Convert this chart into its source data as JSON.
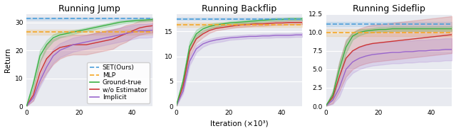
{
  "titles": [
    "Running Jump",
    "Running Backflip",
    "Running Sideflip"
  ],
  "xlabel": "Iteration (×10³)",
  "ylabel": "Return",
  "colors": {
    "SET": "#4C9ED9",
    "MLP": "#F5A623",
    "Ground": "#3BB143",
    "wo_Estimator": "#CC3333",
    "Implicit": "#9966CC"
  },
  "jump": {
    "SET_val": 31.3,
    "MLP_val": 26.5,
    "SET_std": 0.4,
    "MLP_std": 0.8,
    "ground_curve": [
      0.2,
      8,
      18,
      22,
      24.5,
      25.5,
      26,
      26.5,
      27,
      27.5,
      28,
      28.5,
      29,
      29.5,
      30,
      30.3,
      30.5,
      30.7,
      30.8,
      31.0
    ],
    "ground_std": [
      0.1,
      1.5,
      2,
      1.5,
      1.2,
      1.0,
      0.8,
      0.7,
      0.6,
      0.6,
      0.6,
      0.6,
      0.6,
      0.6,
      0.6,
      0.5,
      0.5,
      0.5,
      0.5,
      0.5
    ],
    "wo_est_curve": [
      0.2,
      4,
      12,
      17,
      19.5,
      21,
      21.5,
      22,
      22,
      22,
      22.5,
      23,
      23.5,
      24,
      25,
      26,
      27,
      28,
      28.5,
      28.8
    ],
    "wo_est_std": [
      0.1,
      2,
      4,
      5,
      4.5,
      4,
      3.5,
      3.5,
      3.5,
      3.5,
      3.5,
      3.5,
      3.5,
      3.5,
      3,
      3,
      2.5,
      2.5,
      2.5,
      2.5
    ],
    "implicit_curve": [
      0.2,
      3,
      9,
      14,
      18,
      20,
      21,
      22,
      22.5,
      23,
      23.5,
      24,
      24.5,
      25,
      25.5,
      26,
      26.5,
      27,
      27,
      27.2
    ],
    "implicit_std": [
      0.1,
      1,
      2,
      2.5,
      2.5,
      2.5,
      2.5,
      2.5,
      2.5,
      2.5,
      2.5,
      2.5,
      2.5,
      2.5,
      2.5,
      2.5,
      2.5,
      2.5,
      2.5,
      2.5
    ],
    "ylim": [
      0,
      33
    ],
    "yticks": [
      0,
      10,
      20,
      30
    ]
  },
  "backflip": {
    "SET_val": 17.5,
    "MLP_val": 16.3,
    "SET_std": 0.2,
    "MLP_std": 0.4,
    "ground_curve": [
      0.2,
      5,
      12,
      14.5,
      15.5,
      16,
      16.3,
      16.5,
      16.7,
      16.8,
      16.9,
      17.0,
      17.1,
      17.2,
      17.3,
      17.4,
      17.4,
      17.5,
      17.5,
      17.5
    ],
    "ground_std": [
      0.1,
      0.8,
      1.0,
      0.8,
      0.6,
      0.5,
      0.4,
      0.3,
      0.3,
      0.3,
      0.3,
      0.3,
      0.3,
      0.3,
      0.3,
      0.3,
      0.3,
      0.3,
      0.3,
      0.3
    ],
    "wo_est_curve": [
      0.2,
      4,
      11,
      13.5,
      14.5,
      15.2,
      15.6,
      15.8,
      16.0,
      16.2,
      16.3,
      16.4,
      16.5,
      16.5,
      16.6,
      16.7,
      16.7,
      16.8,
      16.8,
      16.8
    ],
    "wo_est_std": [
      0.1,
      0.8,
      1.0,
      0.8,
      0.7,
      0.5,
      0.4,
      0.4,
      0.4,
      0.4,
      0.4,
      0.4,
      0.4,
      0.4,
      0.4,
      0.4,
      0.4,
      0.4,
      0.4,
      0.4
    ],
    "implicit_curve": [
      0.2,
      3,
      9,
      11.5,
      12.5,
      13.0,
      13.3,
      13.5,
      13.7,
      13.8,
      13.9,
      14.0,
      14.0,
      14.1,
      14.1,
      14.2,
      14.2,
      14.2,
      14.3,
      14.3
    ],
    "implicit_std": [
      0.1,
      0.5,
      0.8,
      0.7,
      0.6,
      0.5,
      0.5,
      0.5,
      0.4,
      0.4,
      0.4,
      0.4,
      0.4,
      0.4,
      0.4,
      0.4,
      0.4,
      0.4,
      0.4,
      0.4
    ],
    "ylim": [
      0,
      18.5
    ],
    "yticks": [
      0,
      5,
      10,
      15
    ]
  },
  "sideflip": {
    "SET_val": 11.1,
    "MLP_val": 10.0,
    "SET_std": 0.3,
    "MLP_std": 0.5,
    "ground_curve": [
      0.1,
      1.5,
      5,
      8,
      9.5,
      10.0,
      10.2,
      10.3,
      10.4,
      10.4,
      10.5,
      10.5,
      10.5,
      10.5,
      10.5,
      10.5,
      10.5,
      10.5,
      10.5,
      10.5
    ],
    "ground_std": [
      0.05,
      0.5,
      1.0,
      0.8,
      0.5,
      0.4,
      0.3,
      0.3,
      0.3,
      0.3,
      0.3,
      0.3,
      0.3,
      0.3,
      0.3,
      0.3,
      0.3,
      0.3,
      0.3,
      0.3
    ],
    "wo_est_curve": [
      0.1,
      1.2,
      4,
      6.5,
      7.5,
      8.0,
      8.3,
      8.5,
      8.6,
      8.7,
      8.8,
      8.9,
      9.0,
      9.1,
      9.2,
      9.3,
      9.4,
      9.5,
      9.6,
      9.7
    ],
    "wo_est_std": [
      0.05,
      0.8,
      2.0,
      2.5,
      2.5,
      2.5,
      2.5,
      2.5,
      2.5,
      2.5,
      2.5,
      2.5,
      2.5,
      2.5,
      2.5,
      2.5,
      2.5,
      2.5,
      2.5,
      2.5
    ],
    "implicit_curve": [
      0.1,
      0.8,
      2.5,
      5,
      6,
      6.5,
      6.8,
      7.0,
      7.1,
      7.2,
      7.3,
      7.3,
      7.4,
      7.4,
      7.5,
      7.5,
      7.6,
      7.6,
      7.7,
      7.7
    ],
    "implicit_std": [
      0.05,
      0.5,
      1.2,
      1.5,
      1.5,
      1.5,
      1.5,
      1.5,
      1.5,
      1.5,
      1.5,
      1.5,
      1.5,
      1.5,
      1.5,
      1.5,
      1.5,
      1.5,
      1.5,
      1.5
    ],
    "ylim": [
      0,
      12.5
    ],
    "yticks": [
      0.0,
      2.5,
      5.0,
      7.5,
      10.0,
      12.5
    ]
  },
  "n_points": 20,
  "x_max": 48,
  "bg_color": "#E8EAF0",
  "legend_fontsize": 6.5,
  "axis_fontsize": 7.5,
  "title_fontsize": 9
}
